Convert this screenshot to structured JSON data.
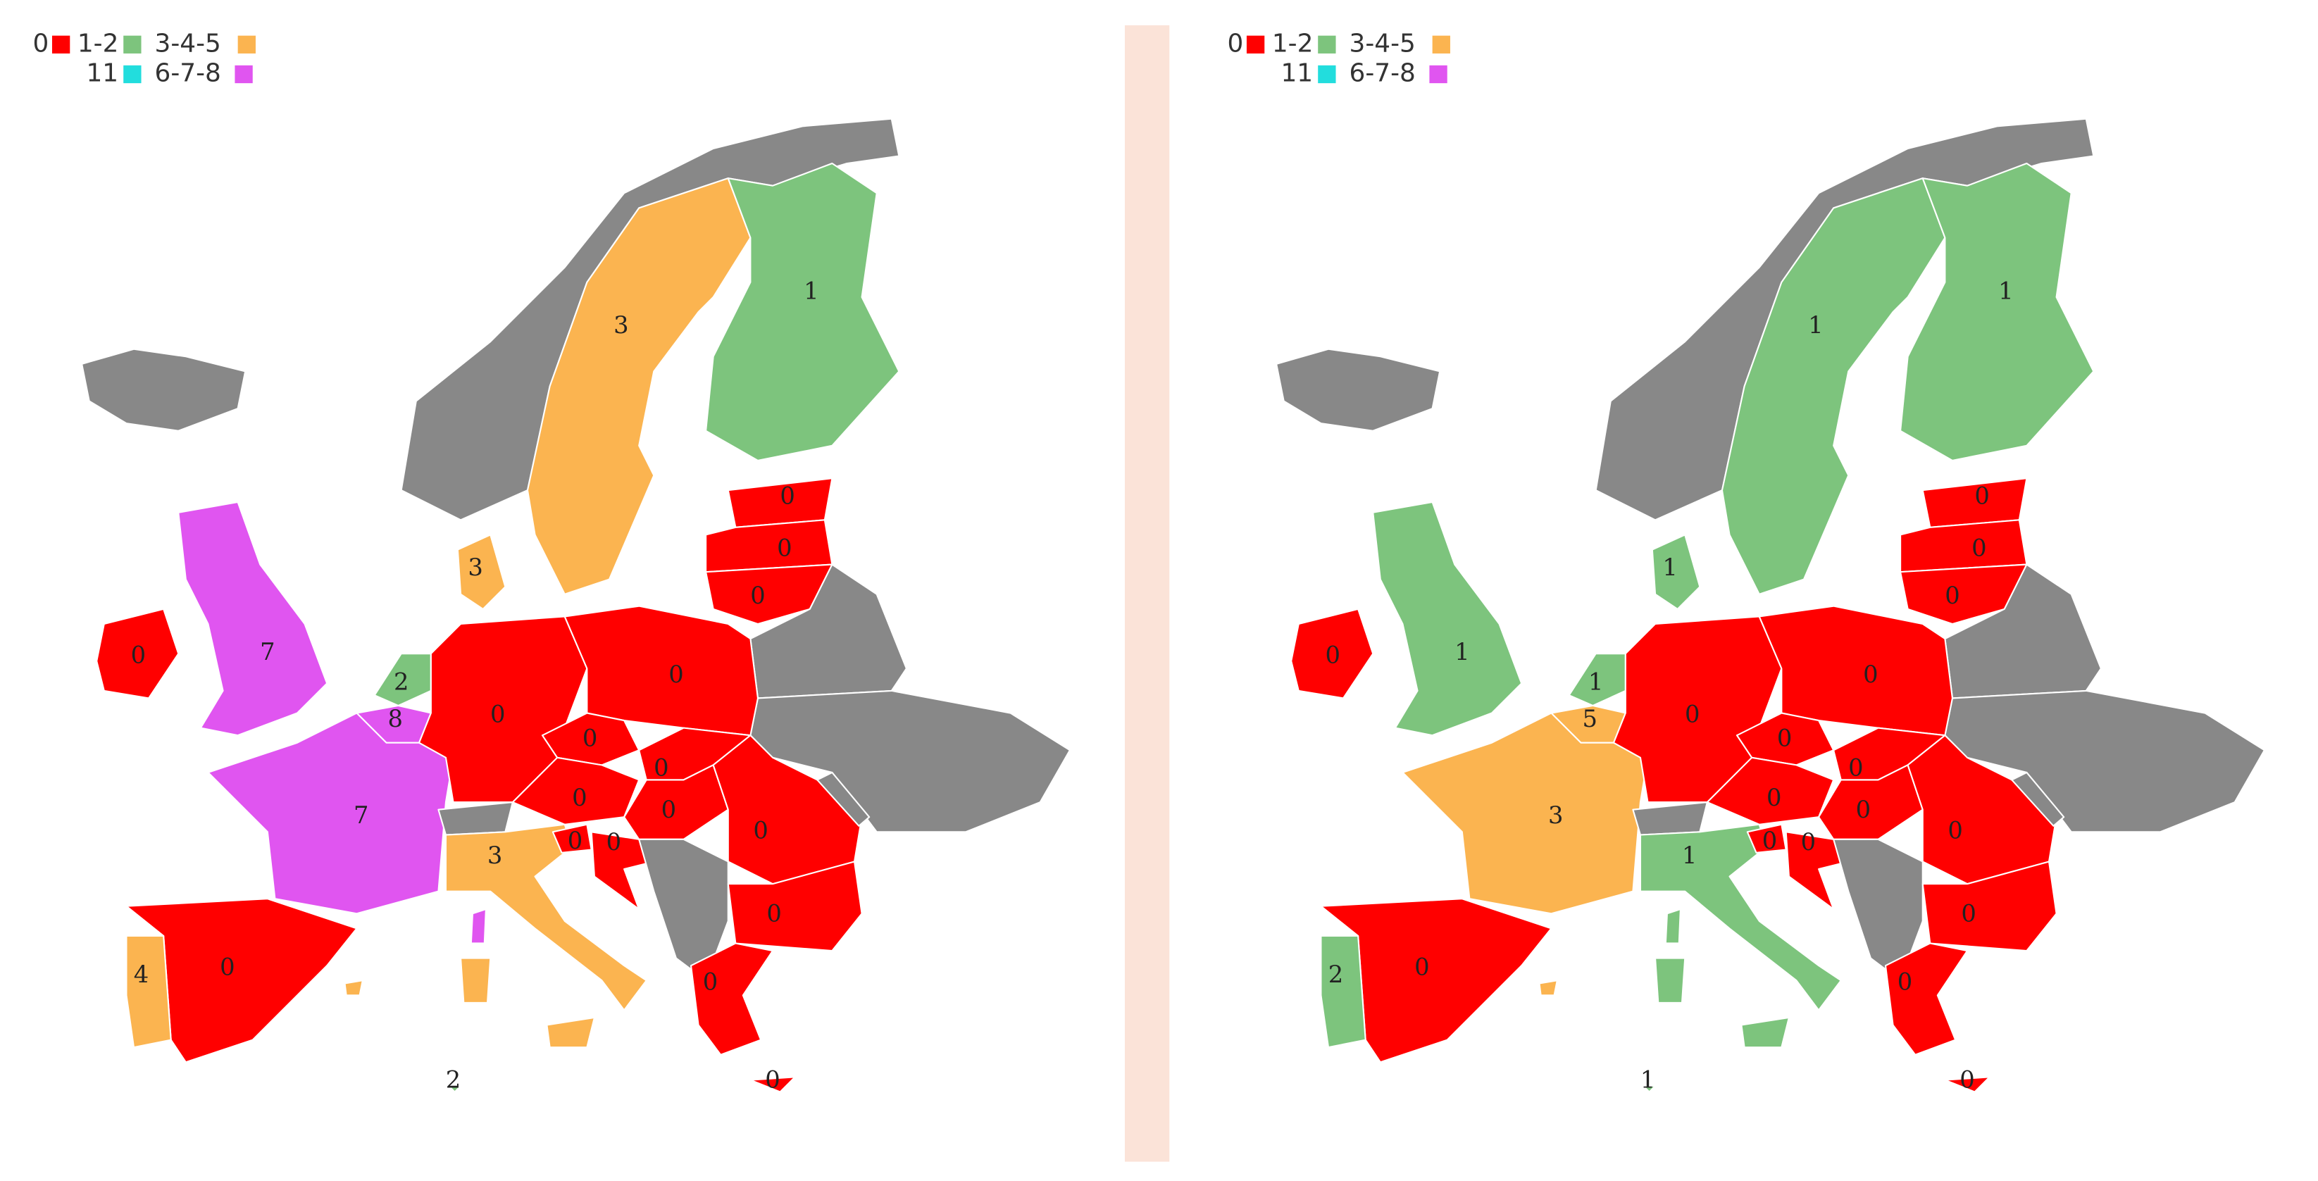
{
  "maps": [
    {
      "legend": [
        {
          "label": "0",
          "color": "#ff0000"
        },
        {
          "label": "1-2",
          "color": "#7dc47d"
        },
        {
          "label": "3-4-5",
          "color": "#fbb450"
        },
        {
          "label": "11",
          "color": "#22dddd"
        },
        {
          "label": "6-7-8",
          "color": "#e055f0"
        }
      ],
      "regions": [
        {
          "color": "#888888"
        },
        {
          "color": "#888888"
        },
        {
          "label": 3,
          "color": "#fbb450"
        },
        {
          "label": 1,
          "color": "#7dc47d"
        },
        {
          "label": 0,
          "color": "#ff0000"
        },
        {
          "label": 0,
          "color": "#ff0000"
        },
        {
          "label": 0,
          "color": "#ff0000"
        },
        {
          "color": "#888888"
        },
        {
          "color": "#888888"
        },
        {
          "label": 0,
          "color": "#ff0000"
        },
        {
          "label": 7,
          "color": "#e055f0"
        },
        {
          "label": 2,
          "color": "#7dc47d"
        },
        {
          "label": 8,
          "color": "#e055f0"
        },
        {
          "label": 7,
          "color": "#e055f0"
        },
        {
          "label": 3,
          "color": "#fbb450"
        },
        {
          "label": 0,
          "color": "#ff0000"
        },
        {
          "label": 0,
          "color": "#ff0000"
        },
        {
          "label": 0,
          "color": "#ff0000"
        },
        {
          "label": 0,
          "color": "#ff0000"
        },
        {
          "label": 0,
          "color": "#ff0000"
        },
        {
          "label": 0,
          "color": "#ff0000"
        },
        {
          "color": "#888888"
        },
        {
          "label": 0,
          "color": "#ff0000"
        },
        {
          "color": "#888888"
        },
        {
          "label": 3,
          "color": "#fbb450"
        },
        {
          "color": "#fbb450"
        },
        {
          "color": "#e055f0"
        },
        {
          "color": "#fbb450"
        },
        {
          "label": 0,
          "color": "#ff0000"
        },
        {
          "label": 0,
          "color": "#ff0000"
        },
        {
          "color": "#888888"
        },
        {
          "label": 0,
          "color": "#ff0000"
        },
        {
          "label": 0,
          "color": "#ff0000"
        },
        {
          "label": 0,
          "color": "#ff0000"
        },
        {
          "label": 4,
          "color": "#fbb450"
        },
        {
          "label": 0,
          "color": "#ff0000"
        },
        {
          "label": 2,
          "color": "#7dc47d"
        },
        {
          "color": "#fbb450"
        }
      ]
    },
    {
      "legend": [
        {
          "label": "0",
          "color": "#ff0000"
        },
        {
          "label": "1-2",
          "color": "#7dc47d"
        },
        {
          "label": "3-4-5",
          "color": "#fbb450"
        },
        {
          "label": "11",
          "color": "#22dddd"
        },
        {
          "label": "6-7-8",
          "color": "#e055f0"
        }
      ],
      "regions": [
        {
          "color": "#888888"
        },
        {
          "color": "#888888"
        },
        {
          "label": 1,
          "color": "#7dc47d"
        },
        {
          "label": 1,
          "color": "#7dc47d"
        },
        {
          "label": 0,
          "color": "#ff0000"
        },
        {
          "label": 0,
          "color": "#ff0000"
        },
        {
          "label": 0,
          "color": "#ff0000"
        },
        {
          "color": "#888888"
        },
        {
          "color": "#888888"
        },
        {
          "label": 0,
          "color": "#ff0000"
        },
        {
          "label": 1,
          "color": "#7dc47d"
        },
        {
          "label": 1,
          "color": "#7dc47d"
        },
        {
          "label": 5,
          "color": "#fbb450"
        },
        {
          "label": 3,
          "color": "#fbb450"
        },
        {
          "label": 1,
          "color": "#7dc47d"
        },
        {
          "label": 0,
          "color": "#ff0000"
        },
        {
          "label": 0,
          "color": "#ff0000"
        },
        {
          "label": 0,
          "color": "#ff0000"
        },
        {
          "label": 0,
          "color": "#ff0000"
        },
        {
          "label": 0,
          "color": "#ff0000"
        },
        {
          "label": 0,
          "color": "#ff0000"
        },
        {
          "color": "#888888"
        },
        {
          "label": 0,
          "color": "#ff0000"
        },
        {
          "color": "#888888"
        },
        {
          "label": 1,
          "color": "#7dc47d"
        },
        {
          "color": "#7dc47d"
        },
        {
          "color": "#7dc47d"
        },
        {
          "color": "#7dc47d"
        },
        {
          "label": 0,
          "color": "#ff0000"
        },
        {
          "label": 0,
          "color": "#ff0000"
        },
        {
          "color": "#888888"
        },
        {
          "label": 0,
          "color": "#ff0000"
        },
        {
          "label": 0,
          "color": "#ff0000"
        },
        {
          "label": 0,
          "color": "#ff0000"
        },
        {
          "label": 2,
          "color": "#7dc47d"
        },
        {
          "label": 0,
          "color": "#ff0000"
        },
        {
          "label": 1,
          "color": "#7dc47d"
        },
        {
          "color": "#fbb450"
        }
      ]
    }
  ]
}
